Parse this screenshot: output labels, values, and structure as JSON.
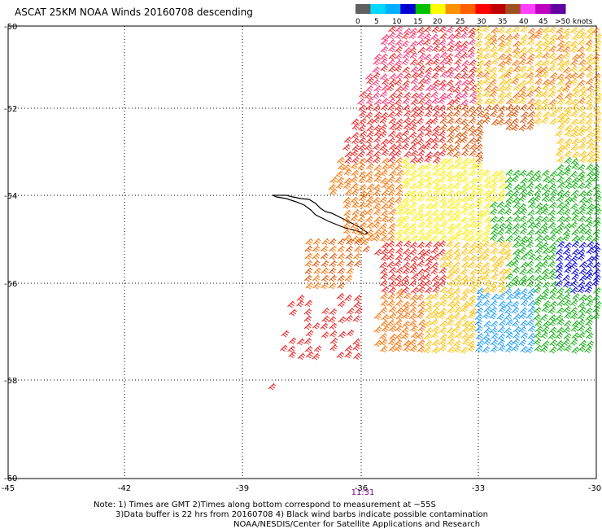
{
  "title": "ASCAT 25KM NOAA Winds 20160708 descending",
  "legend": {
    "labels": [
      "0",
      "5",
      "10",
      "15",
      "20",
      "25",
      "30",
      "35",
      "40",
      "45",
      ">50 knots"
    ],
    "colors": [
      "#606060",
      "#00d8ff",
      "#00b0ff",
      "#0000d0",
      "#00c000",
      "#ffff00",
      "#ff9000",
      "#ff6000",
      "#ff0000",
      "#c00000",
      "#a05020",
      "#ff40ff",
      "#c000c0",
      "#6000a0"
    ]
  },
  "lat_labels": [
    "-50",
    "-52",
    "-54",
    "-56",
    "-58",
    "-60"
  ],
  "lon_labels": [
    "-45",
    "-42",
    "-39",
    "-36",
    "-33",
    "-30"
  ],
  "time_label": "11:31",
  "notes": {
    "line1": "Note: 1) Times are GMT 2)Times along bottom correspond to measurement at ~55S",
    "line2": "3)Data buffer is 22 hrs from 20160708 4) Black wind barbs indicate possible contamination",
    "line3": "NOAA/NESDIS/Center for Satellite Applications and Research"
  }
}
